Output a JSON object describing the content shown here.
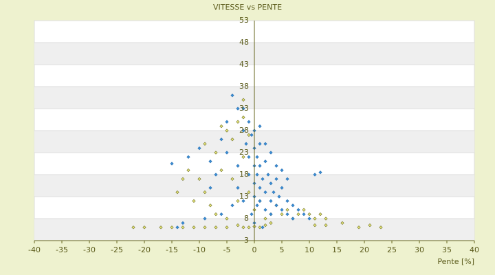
{
  "chart_data": {
    "type": "scatter",
    "title": "VITESSE vs PENTE",
    "x_label": "Pente [%]",
    "xlim": [
      -40,
      40
    ],
    "xticks": [
      -40,
      -35,
      -30,
      -25,
      -20,
      -15,
      -10,
      -5,
      0,
      5,
      10,
      15,
      20,
      25,
      30,
      35,
      40
    ],
    "ylim": [
      3,
      53
    ],
    "yticks": [
      3,
      8,
      13,
      18,
      23,
      28,
      33,
      38,
      43,
      48,
      53
    ],
    "grid": true,
    "series": [
      {
        "color": "#e6e67a",
        "x": [
          -22,
          -20,
          -17,
          -15,
          -13,
          -11,
          -9,
          -7,
          -5,
          -3,
          -2,
          -1,
          0,
          1,
          2,
          3,
          11,
          13,
          16,
          19,
          21,
          23,
          -13,
          -12,
          -10,
          -9,
          -8,
          -7,
          -6,
          -5,
          -4,
          -3,
          -2,
          -2,
          -1,
          -1,
          0,
          1,
          2,
          3,
          4,
          5,
          6,
          7,
          8,
          9,
          10,
          11,
          12,
          13,
          -11,
          -14,
          -6,
          -4,
          -3,
          -5,
          -9,
          -7,
          -2
        ],
        "values": [
          6,
          6,
          6,
          6,
          6,
          6,
          6,
          6,
          6,
          6.5,
          6,
          6,
          6.2,
          6,
          6.5,
          7,
          6.5,
          6.5,
          7,
          6,
          6.5,
          6,
          17,
          19,
          17,
          14,
          11,
          9,
          29,
          28,
          26,
          30,
          31,
          22,
          27,
          14,
          10,
          12,
          8,
          9,
          11,
          9,
          10,
          8,
          9,
          10,
          9,
          8,
          9,
          8,
          12,
          14,
          19,
          17,
          12,
          8,
          25,
          23,
          35
        ]
      },
      {
        "color": "#3a8ed6",
        "x": [
          -15,
          -12,
          -10,
          -8,
          -7,
          -6,
          -5,
          -4,
          -3,
          -2,
          -1.5,
          -1,
          -1,
          -0.5,
          0,
          0,
          0,
          0,
          0.5,
          0.5,
          1,
          1,
          1,
          1,
          1.5,
          2,
          2,
          2,
          2.5,
          3,
          3,
          3,
          3.5,
          4,
          4,
          4.5,
          5,
          5,
          6,
          6,
          7,
          7,
          8,
          9,
          10,
          11,
          12,
          -2,
          -3,
          -4,
          -6,
          -9,
          -13,
          -14,
          -1,
          0,
          -2,
          1,
          0.5,
          -0.5,
          0,
          1.5,
          2,
          3,
          -3,
          -5,
          4,
          5,
          6,
          -8
        ],
        "values": [
          20.5,
          22,
          24,
          21,
          18,
          26,
          30,
          36,
          33,
          28,
          25,
          22,
          18,
          27,
          24,
          20,
          16,
          13,
          22,
          18,
          25,
          20,
          15,
          12,
          17,
          21,
          14,
          10,
          18,
          16,
          12,
          9,
          14,
          17,
          11,
          13,
          10,
          15,
          12,
          9,
          11,
          8,
          10,
          9,
          8,
          18,
          18.5,
          12,
          15,
          11,
          9,
          8,
          7,
          6,
          30,
          28,
          33,
          29,
          11,
          9,
          7,
          6,
          25,
          23,
          20,
          23,
          20,
          19,
          17,
          15
        ]
      }
    ]
  }
}
